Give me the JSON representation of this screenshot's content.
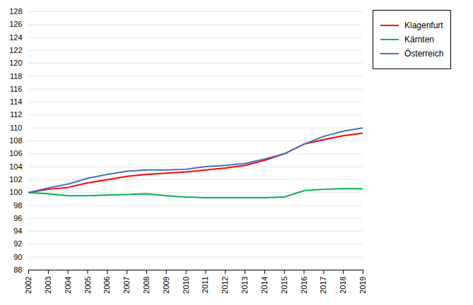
{
  "chart_data": {
    "type": "line",
    "x": [
      2002,
      2003,
      2004,
      2005,
      2006,
      2007,
      2008,
      2009,
      2010,
      2011,
      2012,
      2013,
      2014,
      2015,
      2016,
      2017,
      2018,
      2019
    ],
    "xlim": [
      2002,
      2019
    ],
    "xticks": [
      2002,
      2003,
      2004,
      2005,
      2006,
      2007,
      2008,
      2009,
      2010,
      2011,
      2012,
      2013,
      2014,
      2015,
      2016,
      2017,
      2018,
      2019
    ],
    "series": [
      {
        "name": "Klagenfurt",
        "color": "#ff0000",
        "values": [
          100.0,
          100.5,
          100.8,
          101.5,
          102.0,
          102.5,
          102.8,
          103.0,
          103.2,
          103.5,
          103.8,
          104.2,
          105.0,
          106.0,
          107.5,
          108.2,
          108.8,
          109.2
        ]
      },
      {
        "name": "Kärnten",
        "color": "#00b050",
        "values": [
          100.0,
          99.8,
          99.5,
          99.5,
          99.6,
          99.7,
          99.8,
          99.5,
          99.3,
          99.2,
          99.2,
          99.2,
          99.2,
          99.3,
          100.3,
          100.5,
          100.6,
          100.6
        ]
      },
      {
        "name": "Österreich",
        "color": "#4472c4",
        "values": [
          100.0,
          100.7,
          101.3,
          102.2,
          102.8,
          103.3,
          103.5,
          103.5,
          103.6,
          104.0,
          104.2,
          104.5,
          105.2,
          106.0,
          107.5,
          108.7,
          109.5,
          110.0
        ]
      }
    ],
    "ylim": [
      88,
      128
    ],
    "yticks": [
      88,
      90,
      92,
      94,
      96,
      98,
      100,
      102,
      104,
      106,
      108,
      110,
      112,
      114,
      116,
      118,
      120,
      122,
      124,
      126,
      128
    ],
    "grid": true,
    "legend": "right"
  }
}
